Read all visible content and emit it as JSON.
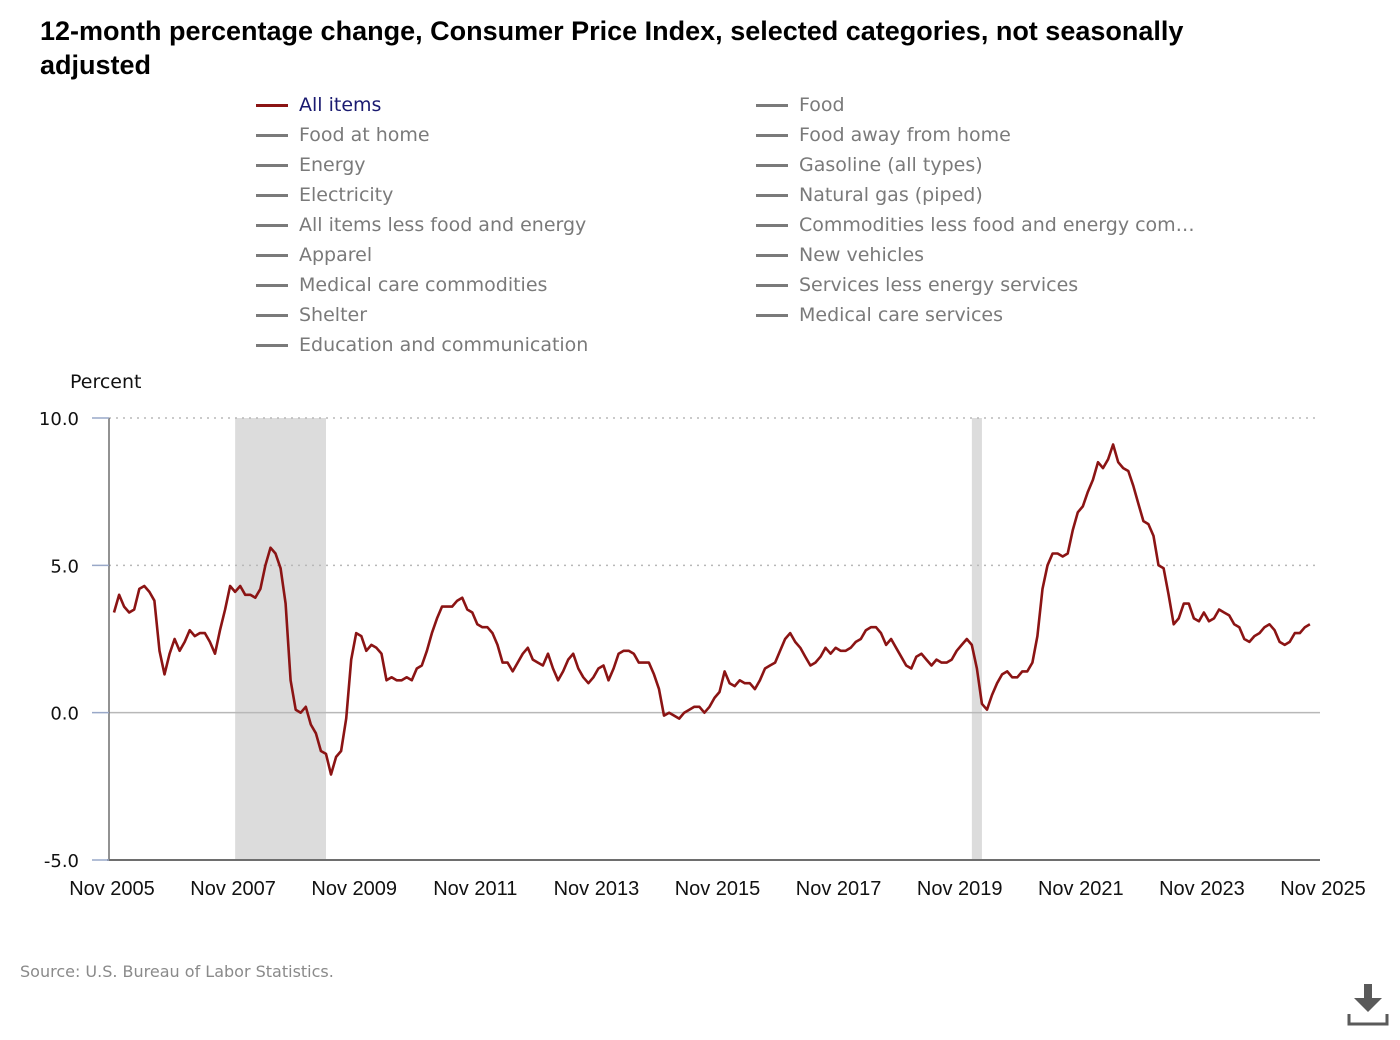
{
  "title": "12-month percentage change, Consumer Price Index, selected categories, not seasonally adjusted",
  "legend": {
    "left": [
      {
        "label": "All items",
        "active": true
      },
      {
        "label": "Food at home"
      },
      {
        "label": "Energy"
      },
      {
        "label": "Electricity"
      },
      {
        "label": "All items less food and energy"
      },
      {
        "label": "Apparel"
      },
      {
        "label": "Medical care commodities"
      },
      {
        "label": "Shelter"
      },
      {
        "label": "Education and communication"
      }
    ],
    "right": [
      {
        "label": "Food"
      },
      {
        "label": "Food away from home"
      },
      {
        "label": "Gasoline (all types)"
      },
      {
        "label": "Natural gas (piped)"
      },
      {
        "label": "Commodities less food and energy com…"
      },
      {
        "label": "New vehicles"
      },
      {
        "label": "Services less energy services"
      },
      {
        "label": "Medical care services"
      }
    ]
  },
  "source": "Source: U.S. Bureau of Labor Statistics.",
  "icons": {
    "download": "download-icon"
  },
  "colors": {
    "all_items": "#8b1414",
    "inactive": "#7a7a7a",
    "recession": "#dcdcdc",
    "gridline": "#b8b8b8",
    "axis": "#6e6e6e"
  },
  "chart_data": {
    "type": "line",
    "ylabel": "Percent",
    "ylim": [
      -5.0,
      10.0
    ],
    "yticks": [
      "10.0",
      "5.0",
      "0.0",
      "-5.0"
    ],
    "ytick_values": [
      10,
      5,
      0,
      -5
    ],
    "xlim": [
      "Nov 2005",
      "Nov 2025"
    ],
    "xticks": [
      "Nov 2005",
      "Nov 2007",
      "Nov 2009",
      "Nov 2011",
      "Nov 2013",
      "Nov 2015",
      "Nov 2017",
      "Nov 2019",
      "Nov 2021",
      "Nov 2023",
      "Nov 2025"
    ],
    "grid": "horizontal dotted at 5.0 and 10.0, solid at 0.0",
    "recessions": [
      {
        "start": "Dec 2007",
        "end": "Jun 2009"
      },
      {
        "start": "Feb 2020",
        "end": "Apr 2020"
      }
    ],
    "series": [
      {
        "name": "All items",
        "start": "Dec 2005",
        "frequency": "monthly",
        "values": [
          3.4,
          4.0,
          3.6,
          3.4,
          3.5,
          4.2,
          4.3,
          4.1,
          3.8,
          2.1,
          1.3,
          2.0,
          2.5,
          2.1,
          2.4,
          2.8,
          2.6,
          2.7,
          2.7,
          2.4,
          2.0,
          2.8,
          3.5,
          4.3,
          4.1,
          4.3,
          4.0,
          4.0,
          3.9,
          4.2,
          5.0,
          5.6,
          5.4,
          4.9,
          3.7,
          1.1,
          0.1,
          0.0,
          0.2,
          -0.4,
          -0.7,
          -1.3,
          -1.4,
          -2.1,
          -1.5,
          -1.3,
          -0.2,
          1.8,
          2.7,
          2.6,
          2.1,
          2.3,
          2.2,
          2.0,
          1.1,
          1.2,
          1.1,
          1.1,
          1.2,
          1.1,
          1.5,
          1.6,
          2.1,
          2.7,
          3.2,
          3.6,
          3.6,
          3.6,
          3.8,
          3.9,
          3.5,
          3.4,
          3.0,
          2.9,
          2.9,
          2.7,
          2.3,
          1.7,
          1.7,
          1.4,
          1.7,
          2.0,
          2.2,
          1.8,
          1.7,
          1.6,
          2.0,
          1.5,
          1.1,
          1.4,
          1.8,
          2.0,
          1.5,
          1.2,
          1.0,
          1.2,
          1.5,
          1.6,
          1.1,
          1.5,
          2.0,
          2.1,
          2.1,
          2.0,
          1.7,
          1.7,
          1.7,
          1.3,
          0.8,
          -0.1,
          0.0,
          -0.1,
          -0.2,
          0.0,
          0.1,
          0.2,
          0.2,
          0.0,
          0.2,
          0.5,
          0.7,
          1.4,
          1.0,
          0.9,
          1.1,
          1.0,
          1.0,
          0.8,
          1.1,
          1.5,
          1.6,
          1.7,
          2.1,
          2.5,
          2.7,
          2.4,
          2.2,
          1.9,
          1.6,
          1.7,
          1.9,
          2.2,
          2.0,
          2.2,
          2.1,
          2.1,
          2.2,
          2.4,
          2.5,
          2.8,
          2.9,
          2.9,
          2.7,
          2.3,
          2.5,
          2.2,
          1.9,
          1.6,
          1.5,
          1.9,
          2.0,
          1.8,
          1.6,
          1.8,
          1.7,
          1.7,
          1.8,
          2.1,
          2.3,
          2.5,
          2.3,
          1.5,
          0.3,
          0.1,
          0.6,
          1.0,
          1.3,
          1.4,
          1.2,
          1.2,
          1.4,
          1.4,
          1.7,
          2.6,
          4.2,
          5.0,
          5.4,
          5.4,
          5.3,
          5.4,
          6.2,
          6.8,
          7.0,
          7.5,
          7.9,
          8.5,
          8.3,
          8.6,
          9.1,
          8.5,
          8.3,
          8.2,
          7.7,
          7.1,
          6.5,
          6.4,
          6.0,
          5.0,
          4.9,
          4.0,
          3.0,
          3.2,
          3.7,
          3.7,
          3.2,
          3.1,
          3.4,
          3.1,
          3.2,
          3.5,
          3.4,
          3.3,
          3.0,
          2.9,
          2.5,
          2.4,
          2.6,
          2.7,
          2.9,
          3.0,
          2.8,
          2.4,
          2.3,
          2.4,
          2.7,
          2.7,
          2.9,
          3.0
        ]
      }
    ]
  }
}
